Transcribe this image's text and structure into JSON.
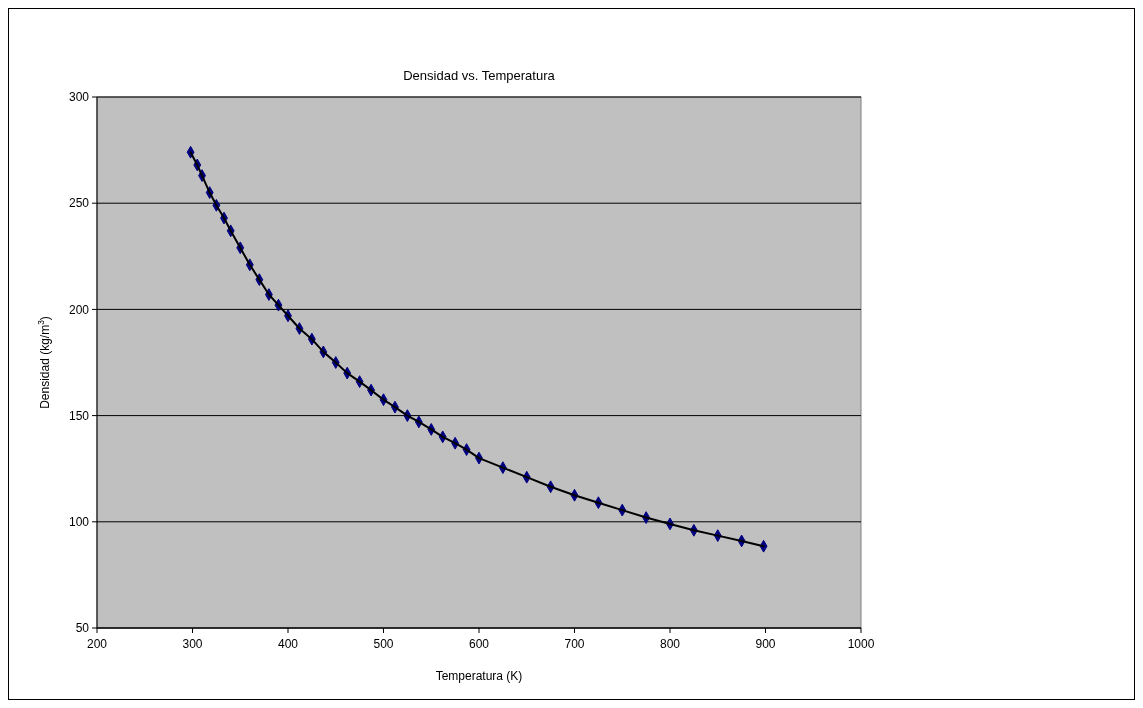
{
  "chart_data": {
    "type": "line",
    "title": "Densidad vs. Temperatura",
    "xlabel": "Temperatura (K)",
    "ylabel": "Densidad (kg/m$^{3}$)",
    "xlim": [
      200,
      1000
    ],
    "xticks": [
      200,
      300,
      400,
      500,
      600,
      700,
      800,
      900,
      1000
    ],
    "ylim": [
      50,
      300
    ],
    "yticks": [
      50,
      100,
      150,
      200,
      250,
      300
    ],
    "grid": "y",
    "marker": "diamond",
    "line_style": "solid",
    "series": [
      {
        "color": "#000080",
        "x": [
          298,
          305,
          310,
          318,
          325,
          333,
          340,
          350,
          360,
          370,
          380,
          390,
          400,
          412,
          425,
          437,
          450,
          462,
          475,
          487,
          500,
          512,
          525,
          537,
          550,
          562,
          575,
          587,
          600,
          625,
          650,
          675,
          700,
          725,
          750,
          775,
          800,
          825,
          850,
          875,
          898
        ],
        "values": [
          274,
          268,
          263,
          255,
          249,
          243,
          237,
          229,
          221,
          214,
          207,
          202,
          197,
          191,
          186,
          180,
          175,
          170,
          166,
          162,
          157.5,
          154,
          150,
          147,
          143.5,
          140,
          137,
          134,
          130,
          125.5,
          121,
          116.5,
          112.5,
          109,
          105.5,
          102,
          99,
          96,
          93.5,
          91,
          88.5
        ]
      }
    ]
  }
}
